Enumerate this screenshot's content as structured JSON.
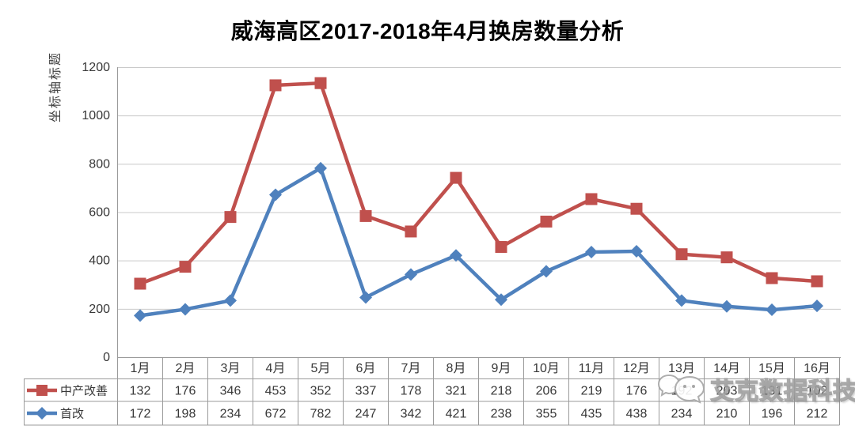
{
  "chart_data": {
    "type": "line",
    "stacked": true,
    "title": "威海高区2017-2018年4月换房数量分析",
    "y_axis_title": "坐标轴标题",
    "categories": [
      "1月",
      "2月",
      "3月",
      "4月",
      "5月",
      "6月",
      "7月",
      "8月",
      "9月",
      "10月",
      "11月",
      "12月",
      "13月",
      "14月",
      "15月",
      "16月"
    ],
    "yticks": [
      0,
      200,
      400,
      600,
      800,
      1000,
      1200
    ],
    "ylim": [
      0,
      1200
    ],
    "grid": "horizontal",
    "legend_position": "data-table-left",
    "series": [
      {
        "name": "中产改善",
        "color": "#C0504D",
        "marker": "square",
        "values": [
          132,
          176,
          346,
          453,
          352,
          337,
          178,
          321,
          218,
          206,
          219,
          176,
          192,
          203,
          131,
          102
        ],
        "values_obscured_by_watermark": [
          "13月",
          "14月",
          "15月",
          "16月"
        ]
      },
      {
        "name": "首改",
        "color": "#4F81BD",
        "marker": "diamond",
        "values": [
          172,
          198,
          234,
          672,
          782,
          247,
          342,
          421,
          238,
          355,
          435,
          438,
          234,
          210,
          196,
          212
        ]
      }
    ]
  },
  "watermark": {
    "text": "艾克数据科技",
    "icon": "wechat-logo-icon"
  },
  "colors": {
    "grid": "#C9C9C9",
    "border": "#9B9B9B",
    "text": "#383838",
    "title": "#000000"
  }
}
